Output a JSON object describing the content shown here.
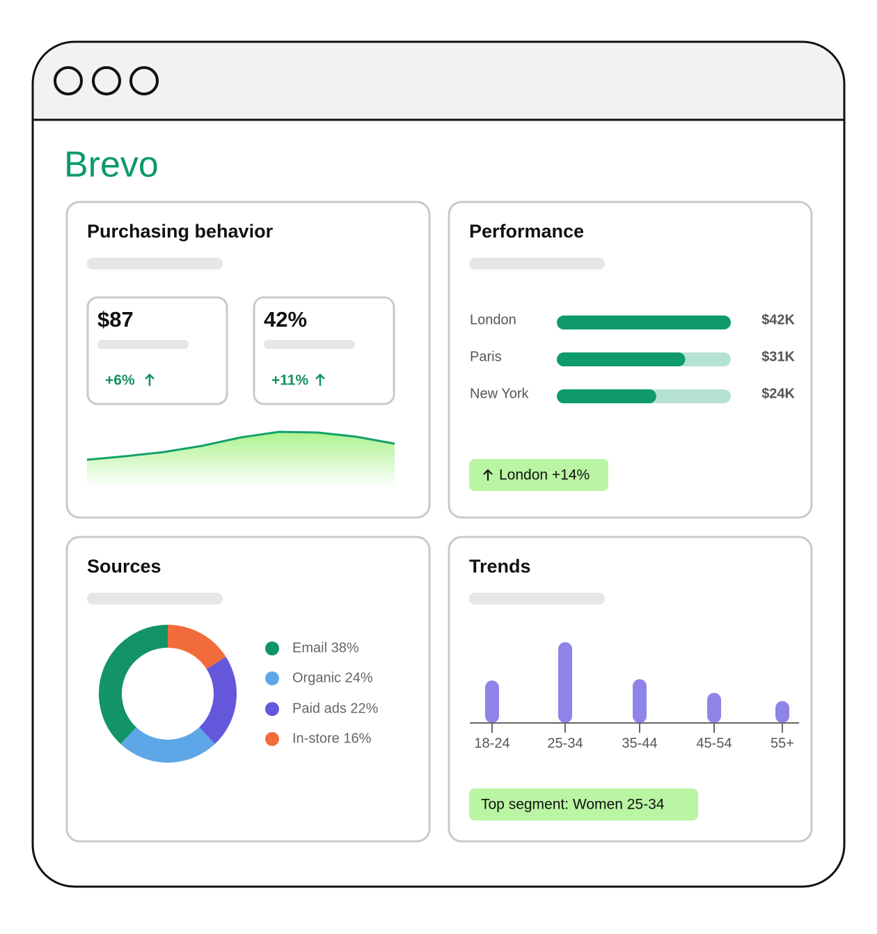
{
  "brand": "Brevo",
  "purchasing": {
    "title": "Purchasing behavior",
    "kpis": [
      {
        "value": "$87",
        "change": "+6%"
      },
      {
        "value": "42%",
        "change": "+11%"
      }
    ],
    "trend": {
      "type": "area",
      "values": [
        40,
        45,
        51,
        60,
        72,
        80,
        79,
        73,
        63
      ],
      "ylim": [
        0,
        100
      ],
      "color": "#14a06a"
    }
  },
  "performance": {
    "title": "Performance",
    "chart": {
      "type": "hbar",
      "categories": [
        "London",
        "Paris",
        "New York"
      ],
      "values": [
        42000,
        31000,
        24000
      ],
      "value_labels": [
        "$42K",
        "$31K",
        "$24K"
      ],
      "xlim": [
        0,
        42000
      ],
      "color": "#0e9a6c",
      "track_color": "#b6e2d2"
    },
    "badge": "London +14%"
  },
  "sources": {
    "title": "Sources",
    "chart": {
      "type": "donut",
      "labels": [
        "Email 38%",
        "Organic 24%",
        "Paid ads 22%",
        "In-store 16%"
      ],
      "values": [
        38,
        24,
        22,
        16
      ],
      "colors": [
        "#139467",
        "#5da7e8",
        "#6557db",
        "#f26b3a"
      ]
    }
  },
  "trends": {
    "title": "Trends",
    "chart": {
      "type": "bar",
      "categories": [
        "18-24",
        "25-34",
        "35-44",
        "45-54",
        "55+"
      ],
      "values": [
        62,
        118,
        64,
        44,
        32
      ],
      "ylim": [
        0,
        120
      ],
      "color": "#8f85e8"
    },
    "badge": "Top segment: Women 25-34"
  }
}
